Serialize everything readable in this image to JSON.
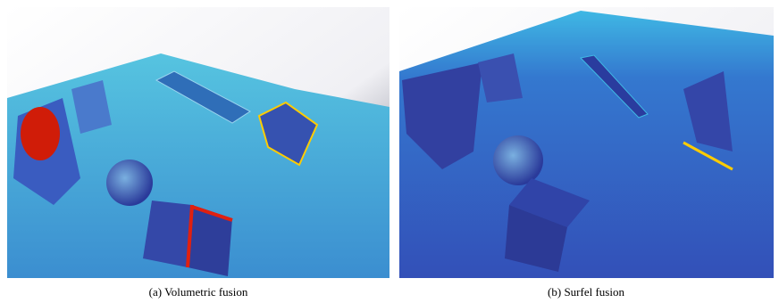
{
  "figure": {
    "panels": [
      {
        "caption": "(a) Volumetric fusion"
      },
      {
        "caption": "(b) Surfel fusion"
      }
    ]
  }
}
